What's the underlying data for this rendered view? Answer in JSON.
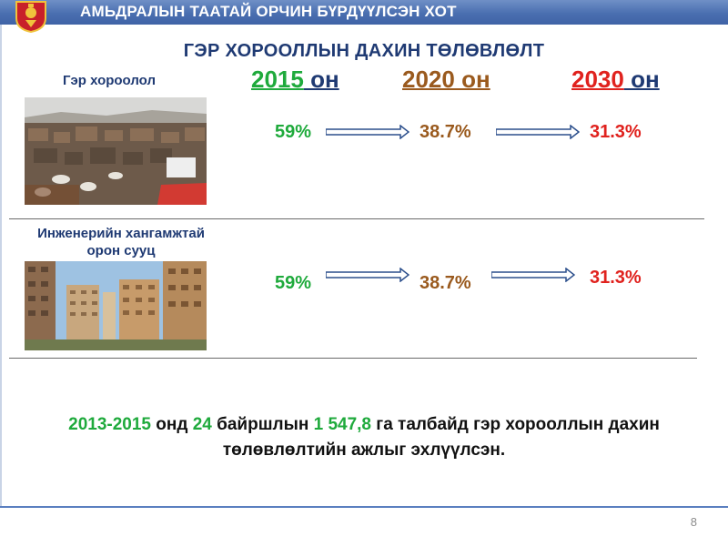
{
  "header": {
    "title": "АМЬДРАЛЫН ТААТАЙ ОРЧИН БҮРДҮҮЛСЭН ХОТ"
  },
  "slide": {
    "title": "ГЭР ХОРООЛЛЫН ДАХИН ТӨЛӨВЛӨЛТ",
    "years": [
      {
        "num": "2015",
        "suffix": " он",
        "color": "#1faa3c"
      },
      {
        "num": "2020 он",
        "suffix": "",
        "color": "#9a5a1e"
      },
      {
        "num": "2030",
        "suffix": " он",
        "color": "#e0221e"
      }
    ],
    "rows": [
      {
        "label": "Гэр хороолол",
        "values": [
          "59%",
          "38.7%",
          "31.3%"
        ]
      },
      {
        "label_line1": "Инженерийн хангамжтай",
        "label_line2": "орон сууц",
        "values": [
          "59%",
          "38.7%",
          "31.3%"
        ]
      }
    ],
    "value_colors": [
      "#1faa3c",
      "#9a5a1e",
      "#e0221e"
    ],
    "summary": {
      "part1": "2013-2015",
      "part2": " онд ",
      "part3": "24",
      "part4": " байршлын ",
      "part5": "1 547,8",
      "part6": " га талбайд гэр хорооллын дахин",
      "line2": "төлөвлөлтийн ажлыг эхлүүлсэн."
    },
    "page_number": "8"
  }
}
